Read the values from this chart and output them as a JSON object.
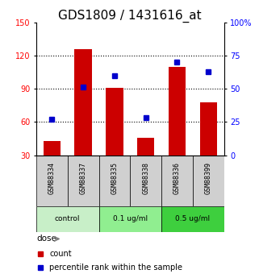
{
  "title": "GDS1809 / 1431616_at",
  "samples": [
    "GSM88334",
    "GSM88337",
    "GSM88335",
    "GSM88338",
    "GSM88336",
    "GSM88399"
  ],
  "groups": [
    {
      "name": "control",
      "color": "#c8efc8"
    },
    {
      "name": "0.1 ug/ml",
      "color": "#90ee90"
    },
    {
      "name": "0.5 ug/ml",
      "color": "#3ecf3e"
    }
  ],
  "bar_values": [
    43,
    126,
    91,
    46,
    110,
    78
  ],
  "dot_values_pct": [
    27,
    51,
    60,
    28,
    70,
    63
  ],
  "bar_color": "#cc0000",
  "dot_color": "#0000cc",
  "left_ylim": [
    30,
    150
  ],
  "left_yticks": [
    30,
    60,
    90,
    120,
    150
  ],
  "right_ylim": [
    0,
    100
  ],
  "right_yticks": [
    0,
    25,
    50,
    75,
    100
  ],
  "right_yticklabels": [
    "0",
    "25",
    "50",
    "75",
    "100%"
  ],
  "hlines": [
    60,
    90,
    120
  ],
  "sample_bg": "#d0d0d0",
  "title_fontsize": 11,
  "tick_fontsize": 7,
  "bar_width": 0.55
}
